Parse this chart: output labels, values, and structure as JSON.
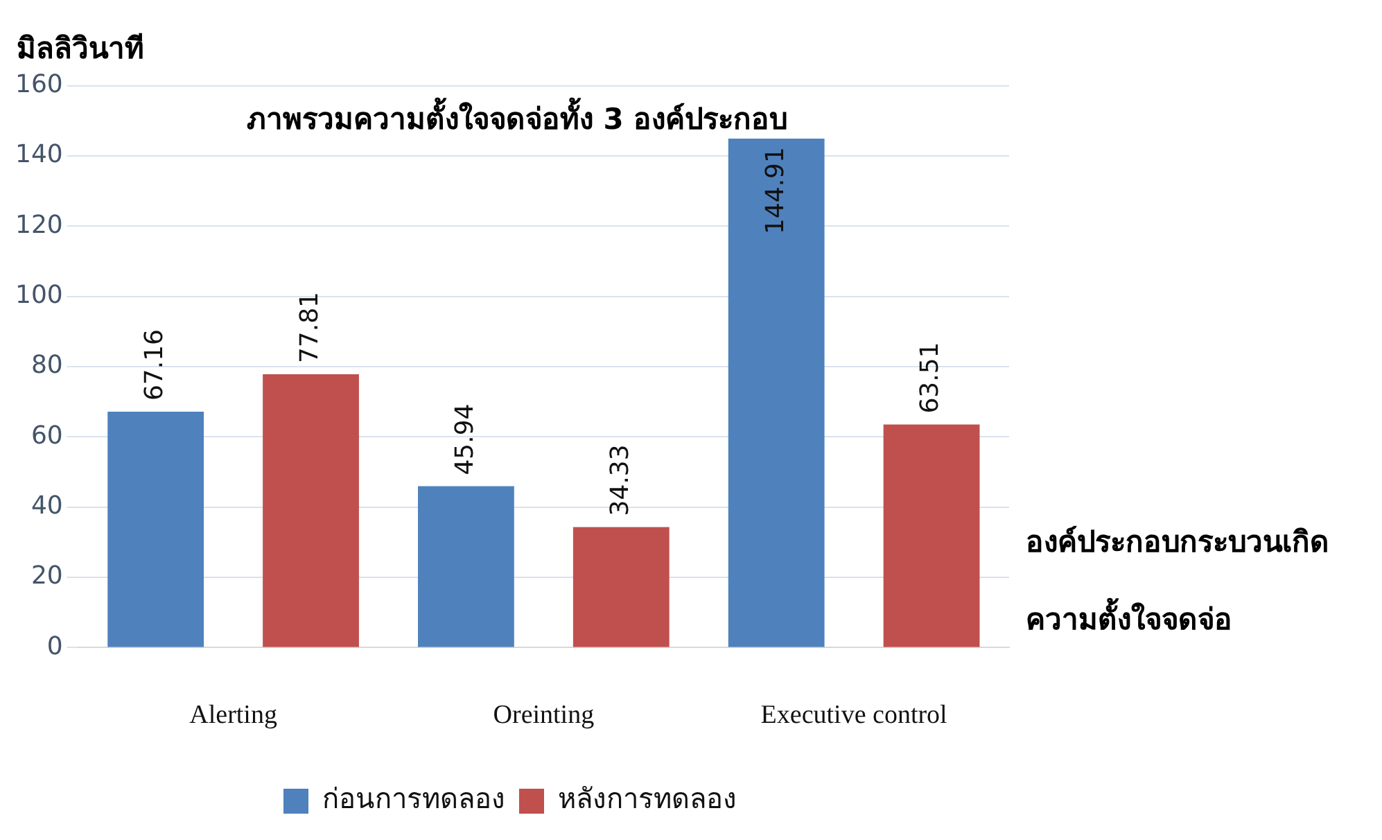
{
  "chart_data": {
    "type": "bar",
    "title": "ภาพรวมความตั้งใจจดจ่อทั้ง 3 องค์ประกอบ",
    "ylabel": "มิลลิวินาที",
    "xlabel": "องค์ประกอบกระบวนเกิดความตั้งใจจดจ่อ",
    "categories": [
      "Alerting",
      "Oreinting",
      "Executive control"
    ],
    "series": [
      {
        "name": "ก่อนการทดลอง",
        "color": "#4f81bd",
        "values": [
          67.16,
          45.94,
          144.91
        ]
      },
      {
        "name": "หลังการทดลอง",
        "color": "#c0504d",
        "values": [
          77.81,
          34.33,
          63.51
        ]
      }
    ],
    "ylim": [
      0,
      160
    ],
    "yticks": [
      0,
      20,
      40,
      60,
      80,
      100,
      120,
      140,
      160
    ],
    "grid": "y",
    "legend": "bottom",
    "data_labels": true
  }
}
